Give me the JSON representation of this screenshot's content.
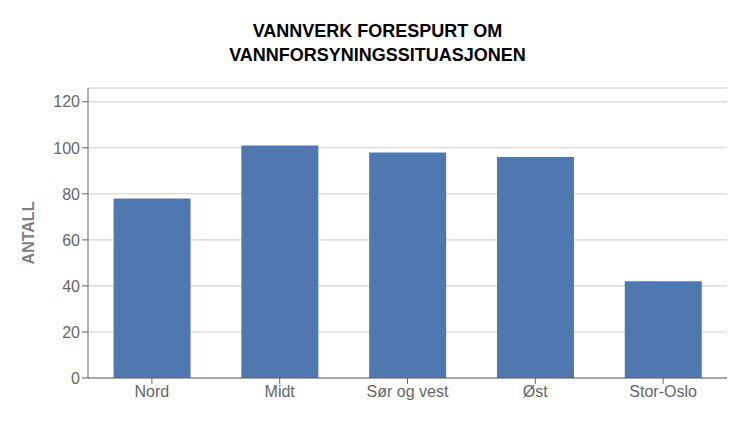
{
  "chart_data": {
    "type": "bar",
    "title": "VANNVERK FORESPURT OM\nVANNFORSYNINGSSITUASJONEN",
    "categories": [
      "Nord",
      "Midt",
      "Sør og vest",
      "Øst",
      "Stor-Oslo"
    ],
    "values": [
      78,
      101,
      98,
      96,
      42
    ],
    "color": "#4F78B0",
    "ylabel": "ANTALL",
    "ylim": [
      0,
      126
    ],
    "yticks": [
      0,
      20,
      40,
      60,
      80,
      100,
      120
    ],
    "grid": true
  }
}
